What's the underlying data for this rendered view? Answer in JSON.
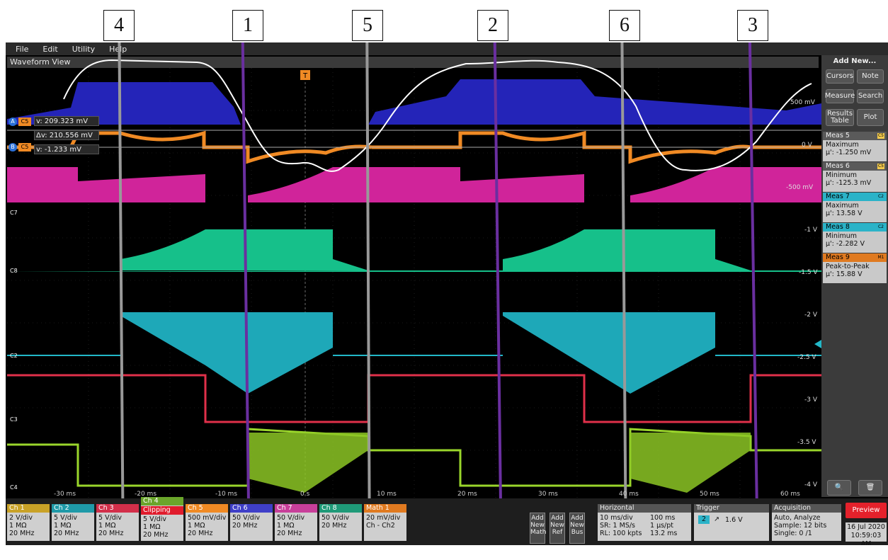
{
  "callouts": [
    "4",
    "1",
    "5",
    "2",
    "6",
    "3"
  ],
  "menu": [
    "File",
    "Edit",
    "Utility",
    "Help"
  ],
  "view_title": "Waveform View",
  "cursor_readouts": [
    {
      "cursor": "A",
      "channel": "C5",
      "text": "v: 209.323 mV"
    },
    {
      "cursor": "",
      "channel": "",
      "text": "Δv: 210.556 mV"
    },
    {
      "cursor": "B",
      "channel": "C5",
      "text": "v: -1.233 mV"
    }
  ],
  "channel_markers": [
    "C7",
    "C8",
    "C2",
    "C3",
    "C4"
  ],
  "y_labels": [
    "500 mV",
    "0 V",
    "-500 mV",
    "-1 V",
    "-1.5 V",
    "-2 V",
    "-2.5 V",
    "-3 V",
    "-3.5 V",
    "-4 V"
  ],
  "time_ticks": [
    "-30 ms",
    "-20 ms",
    "-10 ms",
    "0 s",
    "10 ms",
    "20 ms",
    "30 ms",
    "40 ms",
    "50 ms",
    "60 ms"
  ],
  "trigger_marker": "T",
  "right_panel": {
    "title": "Add New...",
    "buttons": [
      "Cursors",
      "Note",
      "Measure",
      "Search",
      "Results Table",
      "Plot"
    ],
    "measurements": [
      {
        "name": "Meas 5",
        "tag": "C5",
        "type": "Maximum",
        "value": "μ': -1.250 mV",
        "color": "#f2c94c"
      },
      {
        "name": "Meas 6",
        "tag": "C5",
        "type": "Minimum",
        "value": "μ': -125.3 mV",
        "color": "#f2c94c"
      },
      {
        "name": "Meas 7",
        "tag": "C2",
        "type": "Maximum",
        "value": "μ': 13.58 V",
        "color": "#2bb3c8"
      },
      {
        "name": "Meas 8",
        "tag": "C2",
        "type": "Minimum",
        "value": "μ': -2.282 V",
        "color": "#2bb3c8"
      },
      {
        "name": "Meas 9",
        "tag": "M1",
        "type": "Peak-to-Peak",
        "value": "μ': 15.88 V",
        "color": "#e07a20"
      }
    ]
  },
  "channels": [
    {
      "label": "Ch 1",
      "color": "#c9a227",
      "lines": [
        "2 V/div",
        "1 MΩ",
        "20 MHz"
      ]
    },
    {
      "label": "Ch 2",
      "color": "#1f9aa8",
      "lines": [
        "5 V/div",
        "1 MΩ",
        "20 MHz"
      ]
    },
    {
      "label": "Ch 3",
      "color": "#d32f4a",
      "lines": [
        "5 V/div",
        "1 MΩ",
        "20 MHz"
      ]
    },
    {
      "label": "Ch 4",
      "color": "#6aa52b",
      "clipping": "Clipping",
      "lines": [
        "5 V/div",
        "1 MΩ",
        "20 MHz"
      ]
    },
    {
      "label": "Ch 5",
      "color": "#f08a24",
      "lines": [
        "500 mV/div",
        "1 MΩ",
        "20 MHz"
      ]
    },
    {
      "label": "Ch 6",
      "color": "#3f3fc8",
      "lines": [
        "50 V/div",
        "",
        "20 MHz"
      ]
    },
    {
      "label": "Ch 7",
      "color": "#c83f9a",
      "lines": [
        "50 V/div",
        "1 MΩ",
        "20 MHz"
      ]
    },
    {
      "label": "Ch 8",
      "color": "#1f9a78",
      "lines": [
        "50 V/div",
        "",
        "20 MHz"
      ]
    },
    {
      "label": "Math 1",
      "color": "#e07a20",
      "lines": [
        "20 mV/div",
        "Ch - Ch2",
        ""
      ]
    }
  ],
  "add_buttons": [
    "Add New Math",
    "Add New Ref",
    "Add New Bus"
  ],
  "horizontal": {
    "title": "Horizontal",
    "lines": [
      [
        "10 ms/div",
        "100 ms"
      ],
      [
        "SR: 1 MS/s",
        "1 μs/pt"
      ],
      [
        "RL: 100 kpts",
        "13.2 ms"
      ]
    ]
  },
  "trigger": {
    "title": "Trigger",
    "source": "2",
    "level": "1.6 V"
  },
  "acquisition": {
    "title": "Acquisition",
    "lines": [
      "Auto,  Analyze",
      "Sample: 12 bits",
      "Single: 0 /1"
    ]
  },
  "preview_label": "Preview",
  "datetime": [
    "16 Jul 2020",
    "10:59:03 AM"
  ]
}
